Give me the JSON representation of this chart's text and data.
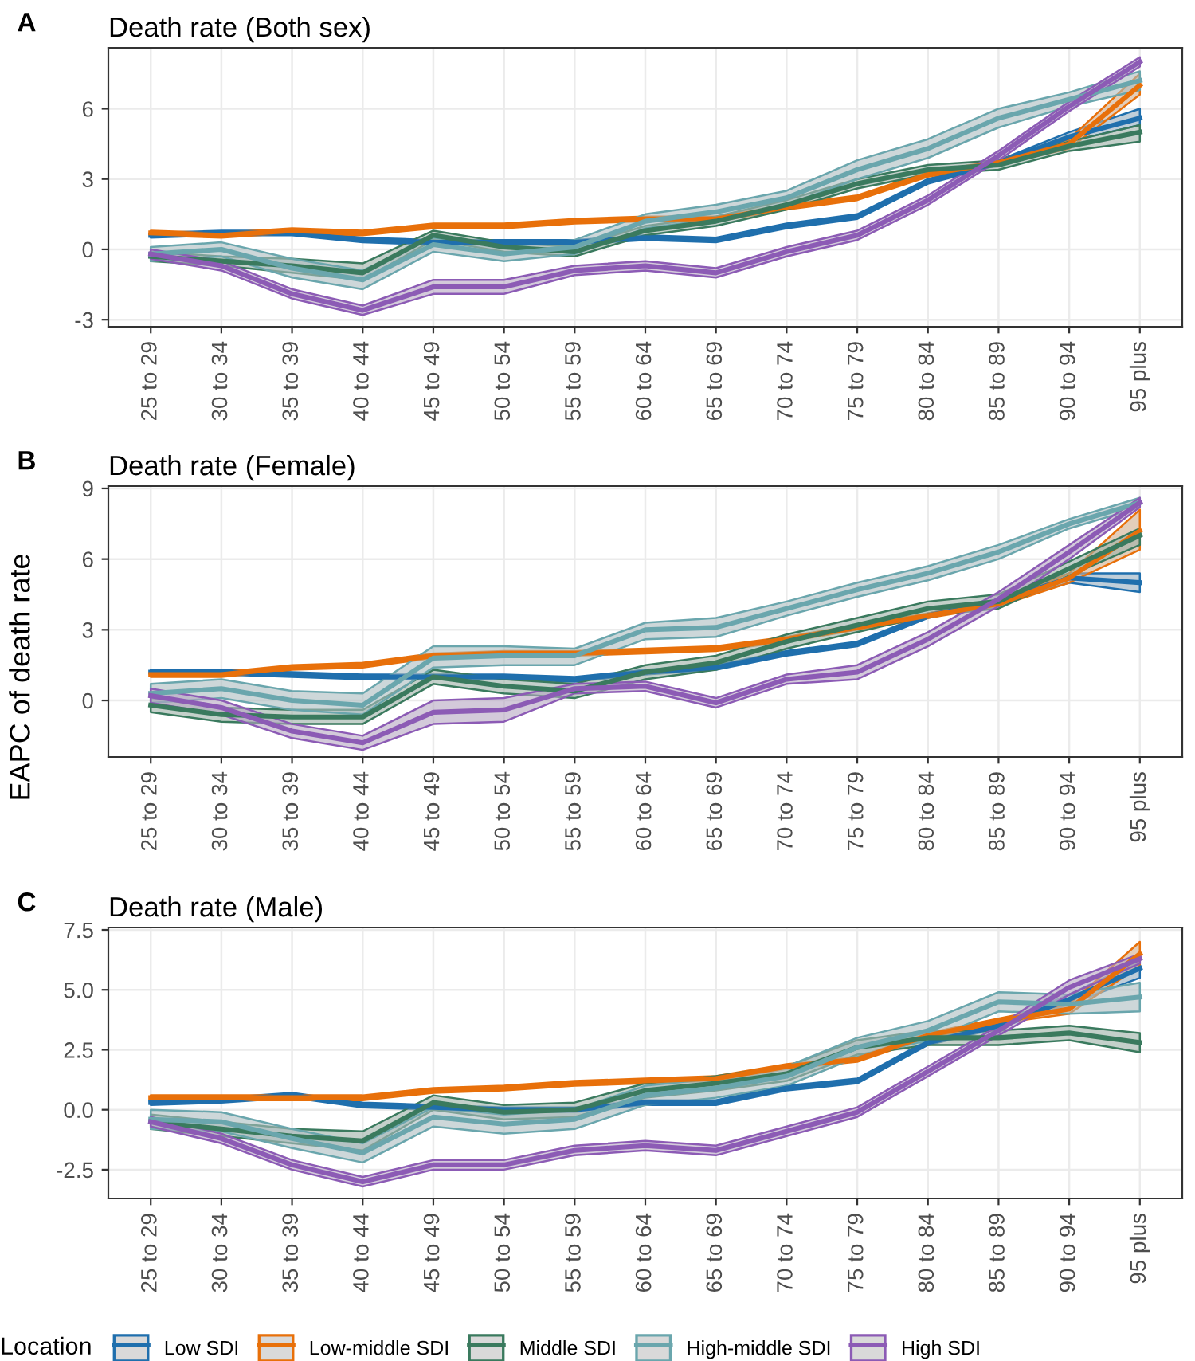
{
  "chart_data": [
    {
      "type": "line",
      "title": "Death rate (Both sex)",
      "annotations": [
        "A"
      ],
      "categories": [
        "25 to 29",
        "30 to 34",
        "35 to 39",
        "40 to 44",
        "45 to 49",
        "50 to 54",
        "55 to 59",
        "60 to 64",
        "65 to 69",
        "70 to 74",
        "75 to 79",
        "80 to 84",
        "85 to 89",
        "90 to 94",
        "95 plus"
      ],
      "ylim": [
        -3.3,
        8.6
      ],
      "yticks": [
        -3,
        0,
        3,
        6
      ],
      "grid": true,
      "legend": "bottom",
      "legend_title": "Location",
      "series": [
        {
          "name": "Low SDI",
          "color": "#1f6fad",
          "values": [
            0.6,
            0.7,
            0.7,
            0.4,
            0.3,
            0.3,
            0.3,
            0.5,
            0.4,
            1.0,
            1.4,
            2.9,
            3.7,
            4.8,
            5.6
          ],
          "lower": [
            0.5,
            0.6,
            0.6,
            0.3,
            0.2,
            0.2,
            0.2,
            0.4,
            0.3,
            0.9,
            1.3,
            2.8,
            3.6,
            4.6,
            5.3
          ],
          "upper": [
            0.7,
            0.8,
            0.8,
            0.5,
            0.4,
            0.4,
            0.4,
            0.6,
            0.5,
            1.1,
            1.5,
            3.0,
            3.8,
            5.0,
            6.0
          ]
        },
        {
          "name": "Low-middle SDI",
          "color": "#e8700a",
          "values": [
            0.7,
            0.6,
            0.8,
            0.7,
            1.0,
            1.0,
            1.2,
            1.3,
            1.3,
            1.8,
            2.2,
            3.2,
            3.7,
            4.5,
            7.0
          ],
          "lower": [
            0.6,
            0.5,
            0.7,
            0.6,
            0.9,
            0.9,
            1.1,
            1.2,
            1.2,
            1.7,
            2.1,
            3.1,
            3.6,
            4.3,
            6.6
          ],
          "upper": [
            0.8,
            0.7,
            0.9,
            0.8,
            1.1,
            1.1,
            1.3,
            1.4,
            1.4,
            1.9,
            2.3,
            3.3,
            3.8,
            4.7,
            7.5
          ]
        },
        {
          "name": "Middle SDI",
          "color": "#3a7a5e",
          "values": [
            -0.3,
            -0.5,
            -0.7,
            -1.0,
            0.6,
            0.1,
            -0.1,
            0.8,
            1.2,
            1.9,
            2.8,
            3.4,
            3.6,
            4.4,
            5.0
          ],
          "lower": [
            -0.5,
            -0.7,
            -1.0,
            -1.3,
            0.4,
            -0.1,
            -0.3,
            0.6,
            1.0,
            1.7,
            2.6,
            3.2,
            3.4,
            4.2,
            4.6
          ],
          "upper": [
            -0.1,
            -0.3,
            -0.4,
            -0.6,
            0.8,
            0.3,
            0.1,
            1.0,
            1.4,
            2.1,
            3.0,
            3.6,
            3.8,
            4.6,
            5.3
          ]
        },
        {
          "name": "High-middle SDI",
          "color": "#6aa6ad",
          "values": [
            -0.2,
            0.0,
            -0.8,
            -1.3,
            0.2,
            -0.2,
            0.1,
            1.2,
            1.6,
            2.2,
            3.4,
            4.3,
            5.6,
            6.4,
            7.2
          ],
          "lower": [
            -0.5,
            -0.3,
            -1.2,
            -1.7,
            -0.1,
            -0.5,
            -0.2,
            0.9,
            1.3,
            1.9,
            3.0,
            3.9,
            5.2,
            6.1,
            6.8
          ],
          "upper": [
            0.1,
            0.3,
            -0.4,
            -0.9,
            0.5,
            0.1,
            0.4,
            1.5,
            1.9,
            2.5,
            3.8,
            4.7,
            6.0,
            6.7,
            7.6
          ]
        },
        {
          "name": "High SDI",
          "color": "#8c5bb5",
          "values": [
            -0.2,
            -0.7,
            -1.9,
            -2.6,
            -1.6,
            -1.6,
            -0.9,
            -0.7,
            -1.0,
            -0.1,
            0.6,
            2.1,
            4.0,
            6.1,
            8.0
          ],
          "lower": [
            -0.4,
            -0.9,
            -2.1,
            -2.8,
            -1.9,
            -1.9,
            -1.1,
            -0.9,
            -1.2,
            -0.3,
            0.4,
            1.9,
            3.8,
            5.9,
            7.8
          ],
          "upper": [
            0.0,
            -0.5,
            -1.7,
            -2.4,
            -1.3,
            -1.3,
            -0.7,
            -0.5,
            -0.8,
            0.1,
            0.8,
            2.3,
            4.2,
            6.3,
            8.2
          ]
        }
      ]
    },
    {
      "type": "line",
      "title": "Death rate (Female)",
      "annotations": [
        "B"
      ],
      "ylabel": "EAPC of death rate",
      "categories": [
        "25 to 29",
        "30 to 34",
        "35 to 39",
        "40 to 44",
        "45 to 49",
        "50 to 54",
        "55 to 59",
        "60 to 64",
        "65 to 69",
        "70 to 74",
        "75 to 79",
        "80 to 84",
        "85 to 89",
        "90 to 94",
        "95 plus"
      ],
      "ylim": [
        -2.4,
        9.1
      ],
      "yticks": [
        0,
        3,
        6,
        9
      ],
      "grid": true,
      "series": [
        {
          "color": "#1f6fad",
          "values": [
            1.2,
            1.2,
            1.1,
            1.0,
            1.0,
            1.0,
            0.9,
            1.2,
            1.4,
            2.0,
            2.4,
            3.6,
            4.2,
            5.2,
            5.0
          ],
          "lower": [
            1.1,
            1.1,
            1.0,
            0.9,
            0.9,
            0.9,
            0.8,
            1.1,
            1.3,
            1.9,
            2.3,
            3.5,
            4.1,
            5.0,
            4.6
          ],
          "upper": [
            1.3,
            1.3,
            1.2,
            1.1,
            1.1,
            1.1,
            1.0,
            1.3,
            1.5,
            2.1,
            2.5,
            3.7,
            4.3,
            5.4,
            5.4
          ]
        },
        {
          "color": "#e8700a",
          "values": [
            1.1,
            1.1,
            1.4,
            1.5,
            1.9,
            2.0,
            2.0,
            2.1,
            2.2,
            2.6,
            3.1,
            3.6,
            4.1,
            5.2,
            7.2
          ],
          "lower": [
            1.0,
            1.0,
            1.3,
            1.4,
            1.8,
            1.9,
            1.9,
            2.0,
            2.1,
            2.5,
            3.0,
            3.5,
            4.0,
            5.0,
            6.4
          ],
          "upper": [
            1.2,
            1.2,
            1.5,
            1.6,
            2.0,
            2.1,
            2.1,
            2.2,
            2.3,
            2.7,
            3.2,
            3.7,
            4.2,
            5.4,
            8.1
          ]
        },
        {
          "color": "#3a7a5e",
          "values": [
            -0.2,
            -0.6,
            -0.7,
            -0.7,
            1.0,
            0.6,
            0.4,
            1.2,
            1.6,
            2.5,
            3.2,
            3.9,
            4.2,
            5.6,
            7.0
          ],
          "lower": [
            -0.5,
            -0.9,
            -1.0,
            -1.0,
            0.7,
            0.3,
            0.1,
            0.9,
            1.3,
            2.2,
            2.9,
            3.6,
            3.9,
            5.3,
            6.6
          ],
          "upper": [
            0.1,
            -0.3,
            -0.4,
            -0.4,
            1.3,
            0.9,
            0.7,
            1.5,
            1.9,
            2.8,
            3.5,
            4.2,
            4.5,
            5.9,
            7.3
          ]
        },
        {
          "color": "#6aa6ad",
          "values": [
            0.3,
            0.5,
            0.0,
            -0.2,
            1.8,
            1.9,
            1.9,
            3.0,
            3.1,
            3.9,
            4.7,
            5.4,
            6.3,
            7.5,
            8.4
          ],
          "lower": [
            -0.1,
            0.1,
            -0.4,
            -0.6,
            1.4,
            1.5,
            1.5,
            2.6,
            2.7,
            3.6,
            4.4,
            5.1,
            6.0,
            7.3,
            8.2
          ],
          "upper": [
            0.7,
            0.9,
            0.4,
            0.3,
            2.3,
            2.3,
            2.2,
            3.3,
            3.5,
            4.2,
            5.0,
            5.7,
            6.6,
            7.7,
            8.6
          ]
        },
        {
          "color": "#8c5bb5",
          "values": [
            0.2,
            -0.3,
            -1.3,
            -1.8,
            -0.5,
            -0.4,
            0.5,
            0.6,
            -0.1,
            0.9,
            1.2,
            2.6,
            4.3,
            6.3,
            8.4
          ],
          "lower": [
            -0.1,
            -0.6,
            -1.6,
            -2.1,
            -1.0,
            -0.9,
            0.3,
            0.4,
            -0.3,
            0.7,
            0.9,
            2.3,
            4.0,
            6.0,
            8.2
          ],
          "upper": [
            0.5,
            0.0,
            -1.0,
            -1.5,
            0.0,
            0.1,
            0.7,
            0.8,
            0.1,
            1.1,
            1.5,
            2.9,
            4.6,
            6.6,
            8.6
          ]
        }
      ]
    },
    {
      "type": "line",
      "title": "Death rate (Male)",
      "annotations": [
        "C"
      ],
      "categories": [
        "25 to 29",
        "30 to 34",
        "35 to 39",
        "40 to 44",
        "45 to 49",
        "50 to 54",
        "55 to 59",
        "60 to 64",
        "65 to 69",
        "70 to 74",
        "75 to 79",
        "80 to 84",
        "85 to 89",
        "90 to 94",
        "95 plus"
      ],
      "ylim": [
        -3.7,
        7.6
      ],
      "yticks": [
        {
          "value": -2.5,
          "label": "-2.5"
        },
        {
          "value": 0,
          "label": "0.0"
        },
        {
          "value": 2.5,
          "label": "2.5"
        },
        {
          "value": 5,
          "label": "5.0"
        },
        {
          "value": 7.5,
          "label": "7.5"
        }
      ],
      "grid": true,
      "series": [
        {
          "color": "#1f6fad",
          "values": [
            0.3,
            0.4,
            0.6,
            0.2,
            0.1,
            0.0,
            0.0,
            0.3,
            0.3,
            0.9,
            1.2,
            2.8,
            3.5,
            4.6,
            5.9
          ],
          "lower": [
            0.2,
            0.3,
            0.5,
            0.1,
            0.0,
            -0.1,
            -0.1,
            0.2,
            0.2,
            0.8,
            1.1,
            2.7,
            3.4,
            4.4,
            5.5
          ],
          "upper": [
            0.4,
            0.5,
            0.7,
            0.3,
            0.2,
            0.1,
            0.1,
            0.4,
            0.4,
            1.0,
            1.3,
            2.9,
            3.6,
            4.8,
            6.2
          ]
        },
        {
          "color": "#e8700a",
          "values": [
            0.5,
            0.5,
            0.5,
            0.5,
            0.8,
            0.9,
            1.1,
            1.2,
            1.3,
            1.8,
            2.1,
            3.1,
            3.7,
            4.2,
            6.5
          ],
          "lower": [
            0.4,
            0.4,
            0.4,
            0.4,
            0.7,
            0.8,
            1.0,
            1.1,
            1.2,
            1.7,
            2.0,
            3.0,
            3.6,
            4.0,
            6.0
          ],
          "upper": [
            0.6,
            0.6,
            0.6,
            0.6,
            0.9,
            1.0,
            1.2,
            1.3,
            1.4,
            1.9,
            2.2,
            3.2,
            3.8,
            4.4,
            7.0
          ]
        },
        {
          "color": "#3a7a5e",
          "values": [
            -0.5,
            -0.8,
            -1.1,
            -1.3,
            0.3,
            -0.1,
            0.0,
            0.8,
            1.1,
            1.5,
            2.6,
            3.0,
            3.0,
            3.2,
            2.8
          ],
          "lower": [
            -0.8,
            -1.1,
            -1.4,
            -1.7,
            0.0,
            -0.4,
            -0.3,
            0.5,
            0.8,
            1.2,
            2.3,
            2.7,
            2.7,
            2.9,
            2.4
          ],
          "upper": [
            -0.2,
            -0.5,
            -0.8,
            -0.9,
            0.6,
            0.2,
            0.3,
            1.1,
            1.4,
            1.8,
            2.9,
            3.3,
            3.3,
            3.5,
            3.2
          ]
        },
        {
          "color": "#6aa6ad",
          "values": [
            -0.4,
            -0.5,
            -1.2,
            -1.8,
            -0.3,
            -0.6,
            -0.4,
            0.6,
            0.9,
            1.4,
            2.6,
            3.3,
            4.5,
            4.4,
            4.7
          ],
          "lower": [
            -0.8,
            -0.9,
            -1.6,
            -2.2,
            -0.7,
            -1.0,
            -0.8,
            0.2,
            0.5,
            1.0,
            2.2,
            2.9,
            4.1,
            4.0,
            4.1
          ],
          "upper": [
            0.0,
            -0.1,
            -0.8,
            -1.4,
            0.1,
            -0.2,
            0.0,
            1.0,
            1.3,
            1.8,
            3.0,
            3.7,
            4.9,
            4.8,
            5.3
          ]
        },
        {
          "color": "#8c5bb5",
          "values": [
            -0.5,
            -1.2,
            -2.3,
            -3.0,
            -2.3,
            -2.3,
            -1.7,
            -1.5,
            -1.7,
            -0.9,
            -0.1,
            1.6,
            3.3,
            5.1,
            6.3
          ],
          "lower": [
            -0.7,
            -1.4,
            -2.5,
            -3.2,
            -2.5,
            -2.5,
            -1.9,
            -1.7,
            -1.9,
            -1.1,
            -0.3,
            1.4,
            3.1,
            4.8,
            6.1
          ],
          "upper": [
            -0.3,
            -1.0,
            -2.1,
            -2.8,
            -2.1,
            -2.1,
            -1.5,
            -1.3,
            -1.5,
            -0.7,
            0.1,
            1.8,
            3.5,
            5.4,
            6.5
          ]
        }
      ]
    }
  ]
}
